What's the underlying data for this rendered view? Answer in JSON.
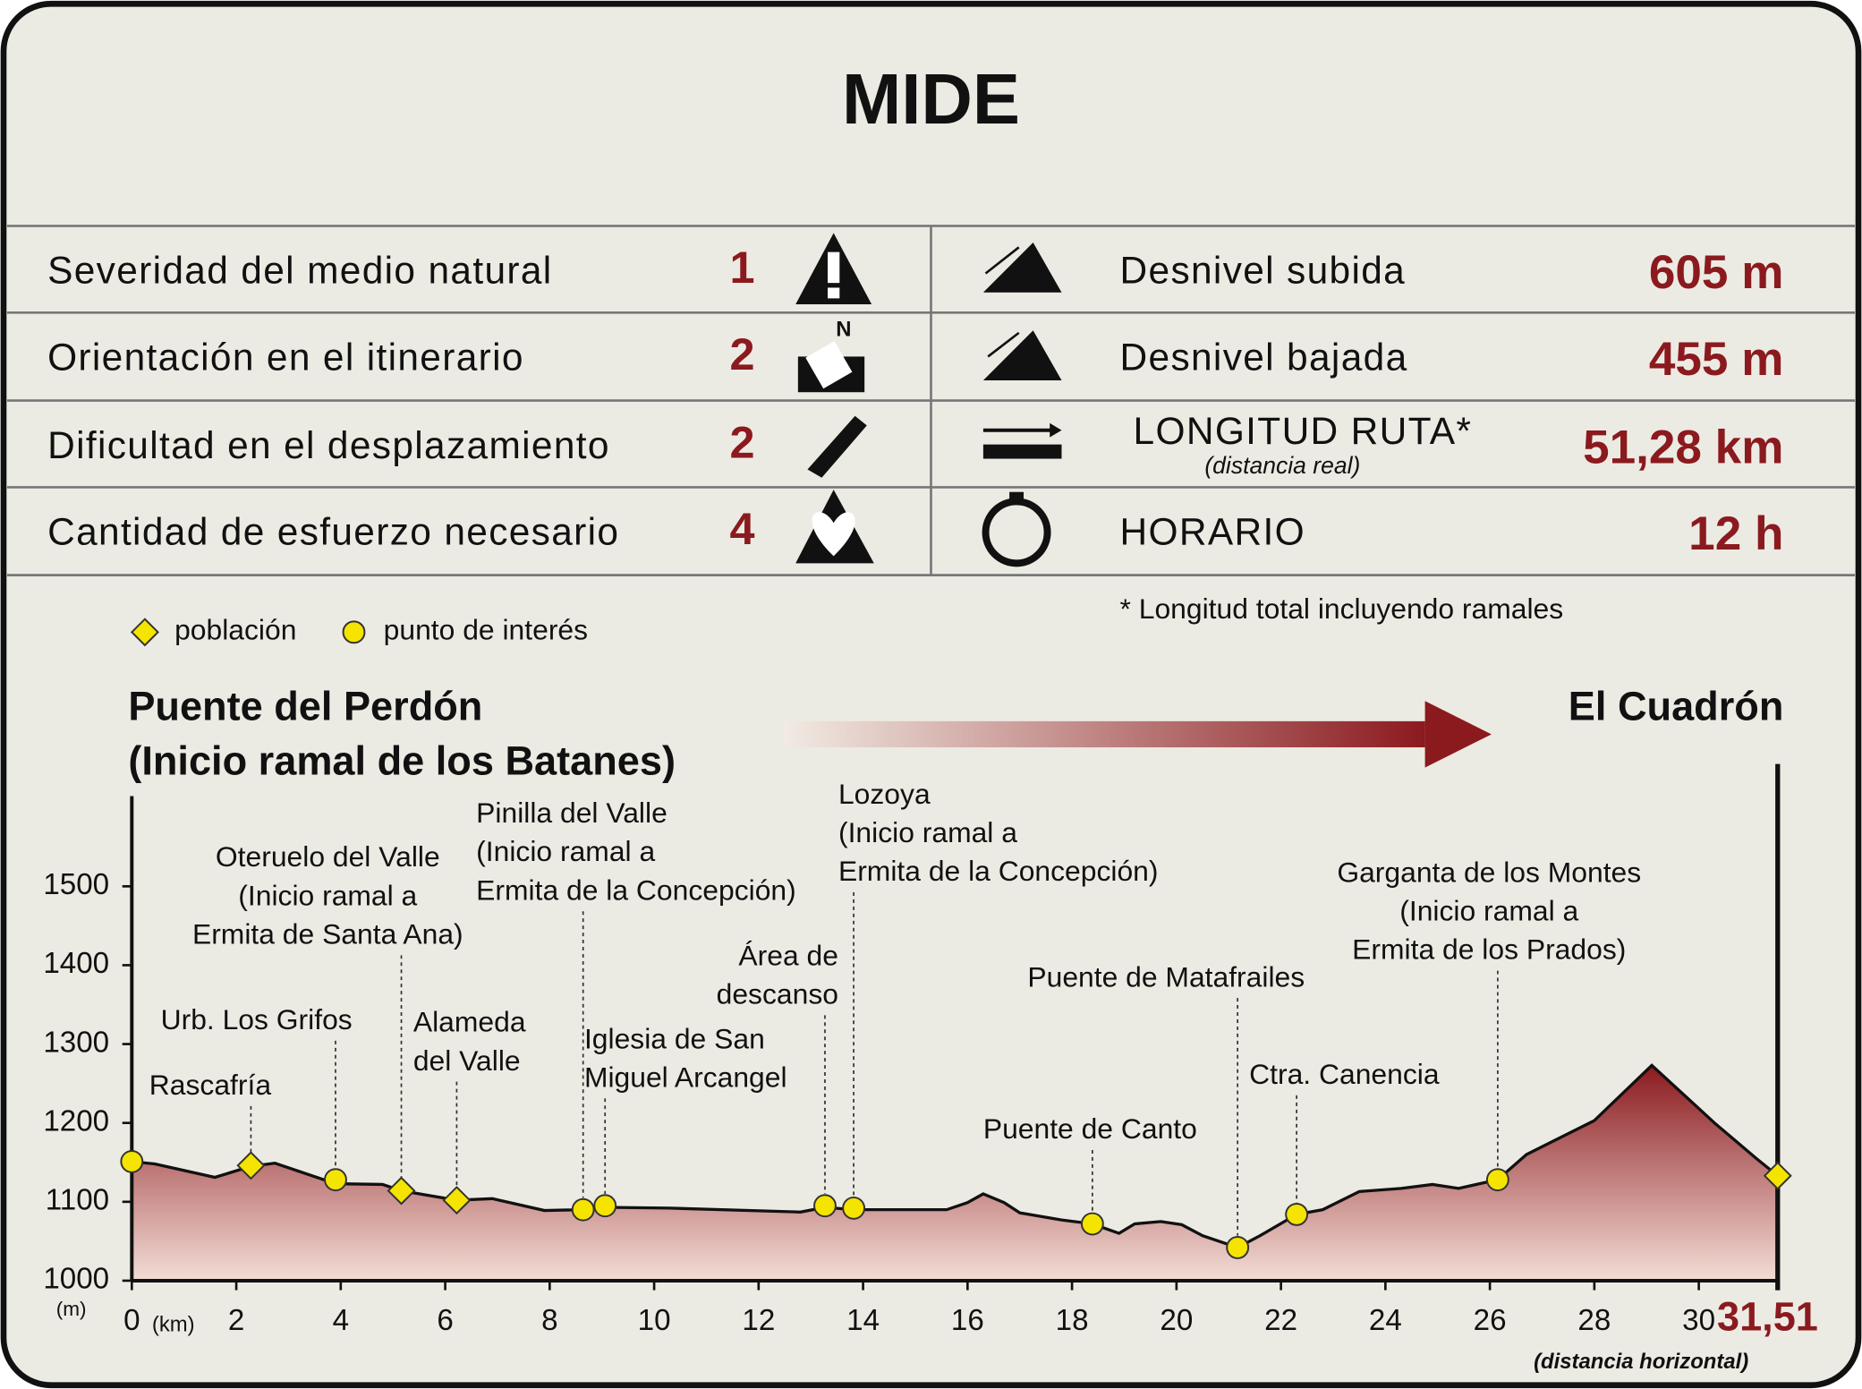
{
  "mide": {
    "title": "MIDE",
    "rows": [
      {
        "label": "Severidad del medio natural",
        "value": "1"
      },
      {
        "label": "Orientación en el itinerario",
        "value": "2"
      },
      {
        "label": "Dificultad en el desplazamiento",
        "value": "2"
      },
      {
        "label": "Cantidad de esfuerzo necesario",
        "value": "4"
      }
    ],
    "stats": [
      {
        "label": "Desnivel subida",
        "value": "605 m"
      },
      {
        "label": "Desnivel bajada",
        "value": "455 m"
      },
      {
        "label": "LONGITUD RUTA*",
        "sublabel": "(distancia real)",
        "value": "51,28 km"
      },
      {
        "label": "HORARIO",
        "value": "12 h"
      }
    ],
    "note": "* Longitud total incluyendo ramales"
  },
  "chart_data": {
    "type": "area",
    "start_label": [
      "Puente del Perdón",
      "(Inicio ramal de los Batanes)"
    ],
    "end_label": "El Cuadrón",
    "x_unit": "(km)",
    "y_unit": "(m)",
    "x_note": "(distancia horizontal)",
    "color": "#8b1a1f",
    "x": [
      0,
      0.44,
      1.59,
      2.28,
      2.74,
      3.9,
      4.8,
      5.16,
      6.22,
      6.9,
      7.9,
      8.64,
      9.06,
      10.3,
      12.8,
      13.27,
      13.82,
      15.6,
      16.0,
      16.3,
      16.7,
      17.0,
      17.8,
      18.39,
      18.9,
      19.2,
      19.7,
      20.1,
      20.5,
      21.17,
      21.6,
      22.3,
      22.8,
      23.5,
      24.3,
      24.9,
      25.4,
      26.15,
      26.7,
      28.0,
      29.1,
      30.3,
      31.1,
      31.51
    ],
    "values": [
      1151,
      1148,
      1131,
      1145,
      1149,
      1123,
      1122,
      1114,
      1102,
      1104,
      1089,
      1090,
      1093,
      1092,
      1087,
      1093,
      1090,
      1090,
      1099,
      1110,
      1099,
      1086,
      1077,
      1072,
      1060,
      1072,
      1075,
      1071,
      1057,
      1042,
      1057,
      1084,
      1090,
      1113,
      1117,
      1122,
      1117,
      1128,
      1160,
      1203,
      1273,
      1200,
      1155,
      1133
    ],
    "xlim": [
      0,
      31.51
    ],
    "ylim": [
      1000,
      1600
    ],
    "xticks": [
      0,
      2,
      4,
      6,
      8,
      10,
      12,
      14,
      16,
      18,
      20,
      22,
      24,
      26,
      28,
      30,
      {
        "value": 31.51,
        "label": "31,51"
      }
    ],
    "yticks": [
      1000,
      1100,
      1200,
      1300,
      1400,
      1500
    ],
    "series": [
      {
        "name": "población",
        "marker": "diamond",
        "color": "#f5e400",
        "x": [
          2.28,
          5.16,
          6.22,
          31.51
        ],
        "values": [
          1146,
          1114,
          1102,
          1133
        ],
        "labels": [
          [
            "Rascafría"
          ],
          [
            "Oteruelo del Valle",
            "(Inicio ramal a",
            "Ermita de Santa Ana)"
          ],
          [
            "Alameda",
            "del Valle"
          ],
          null
        ]
      },
      {
        "name": "punto de interés",
        "marker": "circle",
        "color": "#f5e400",
        "x": [
          0,
          3.9,
          8.64,
          9.06,
          13.27,
          13.82,
          18.39,
          21.17,
          22.3,
          26.15
        ],
        "values": [
          1151,
          1128,
          1090,
          1095,
          1095,
          1092,
          1072,
          1042,
          1084,
          1128
        ],
        "labels": [
          null,
          [
            "Urb. Los Grifos"
          ],
          [
            "Pinilla del Valle",
            "(Inicio ramal a",
            "Ermita de la Concepción)"
          ],
          [
            "Iglesia de San",
            "Miguel Arcangel"
          ],
          [
            "Área de",
            "descanso"
          ],
          [
            "Lozoya",
            "(Inicio ramal a",
            "Ermita de la Concepción)"
          ],
          [
            "Puente de Canto"
          ],
          [
            "Puente de Matafrailes"
          ],
          [
            "Ctra. Canencia"
          ],
          [
            "Garganta de los Montes",
            "(Inicio ramal a",
            "Ermita de los Prados)"
          ]
        ]
      }
    ]
  }
}
